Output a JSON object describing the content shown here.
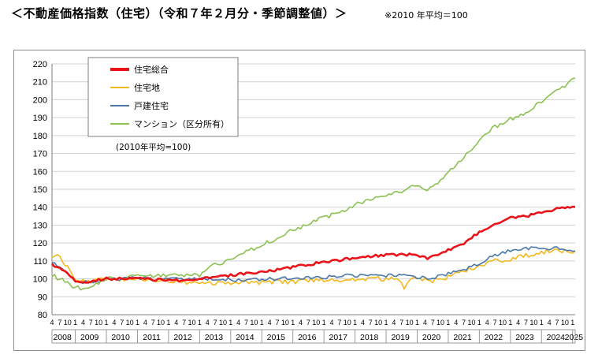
{
  "header": {
    "title": "＜不動産価格指数（住宅）（令和７年２月分・季節調整値）＞",
    "note": "※2010 年平均＝100"
  },
  "chart_data": {
    "type": "line",
    "base_note": "(2010年平均=100)",
    "ylim": [
      80,
      220
    ],
    "yticks": [
      80,
      90,
      100,
      110,
      120,
      130,
      140,
      150,
      160,
      170,
      180,
      190,
      200,
      210,
      220
    ],
    "grid": true,
    "legend_position": "top-left",
    "x_start": "2008-04",
    "x_end": "2025-02",
    "year_labels": [
      "2008",
      "2009",
      "2010",
      "2011",
      "2012",
      "2013",
      "2014",
      "2015",
      "2016",
      "2017",
      "2018",
      "2019",
      "2020",
      "2021",
      "2022",
      "2023",
      "2024",
      "2025"
    ],
    "month_tick_labels": [
      "4",
      "7",
      "10",
      "1"
    ],
    "series": [
      {
        "name": "住宅総合",
        "color": "#e8141a",
        "anchors": [
          [
            "2008-04",
            108
          ],
          [
            "2008-07",
            106
          ],
          [
            "2008-10",
            103
          ],
          [
            "2009-01",
            99
          ],
          [
            "2009-04",
            98
          ],
          [
            "2009-07",
            98
          ],
          [
            "2009-10",
            99.5
          ],
          [
            "2010-01",
            100
          ],
          [
            "2010-06",
            100
          ],
          [
            "2011-01",
            100.5
          ],
          [
            "2011-07",
            99.5
          ],
          [
            "2012-01",
            99.5
          ],
          [
            "2012-07",
            99
          ],
          [
            "2013-01",
            100
          ],
          [
            "2013-07",
            101
          ],
          [
            "2014-01",
            102
          ],
          [
            "2014-07",
            103
          ],
          [
            "2015-01",
            104
          ],
          [
            "2015-07",
            105
          ],
          [
            "2016-01",
            106.5
          ],
          [
            "2016-07",
            108
          ],
          [
            "2017-01",
            109.5
          ],
          [
            "2017-07",
            110.5
          ],
          [
            "2018-01",
            111.5
          ],
          [
            "2018-07",
            112.5
          ],
          [
            "2019-01",
            113.5
          ],
          [
            "2019-07",
            113.5
          ],
          [
            "2020-01",
            113.5
          ],
          [
            "2020-05",
            111.5
          ],
          [
            "2020-10",
            114
          ],
          [
            "2021-01",
            116
          ],
          [
            "2021-07",
            120
          ],
          [
            "2022-01",
            126
          ],
          [
            "2022-07",
            131
          ],
          [
            "2023-01",
            134
          ],
          [
            "2023-07",
            135
          ],
          [
            "2024-01",
            137
          ],
          [
            "2024-07",
            139
          ],
          [
            "2024-10",
            140
          ],
          [
            "2025-02",
            140
          ]
        ],
        "noise": 0.7
      },
      {
        "name": "住宅地",
        "color": "#f2b81e",
        "anchors": [
          [
            "2008-04",
            113
          ],
          [
            "2008-07",
            112
          ],
          [
            "2008-10",
            106
          ],
          [
            "2009-01",
            100
          ],
          [
            "2009-04",
            99
          ],
          [
            "2009-07",
            98.5
          ],
          [
            "2009-10",
            99
          ],
          [
            "2010-01",
            100
          ],
          [
            "2010-06",
            100
          ],
          [
            "2011-01",
            100
          ],
          [
            "2011-07",
            99
          ],
          [
            "2012-01",
            99
          ],
          [
            "2012-07",
            98
          ],
          [
            "2013-01",
            98
          ],
          [
            "2013-07",
            97.5
          ],
          [
            "2014-01",
            98
          ],
          [
            "2014-07",
            98
          ],
          [
            "2015-01",
            98
          ],
          [
            "2015-07",
            98.5
          ],
          [
            "2016-01",
            98
          ],
          [
            "2016-07",
            99
          ],
          [
            "2017-01",
            99.5
          ],
          [
            "2017-07",
            99.5
          ],
          [
            "2018-01",
            100
          ],
          [
            "2018-07",
            100
          ],
          [
            "2019-01",
            100
          ],
          [
            "2019-06",
            100
          ],
          [
            "2019-08",
            94
          ],
          [
            "2019-10",
            100
          ],
          [
            "2020-01",
            100
          ],
          [
            "2020-07",
            99
          ],
          [
            "2021-01",
            101
          ],
          [
            "2021-07",
            104
          ],
          [
            "2022-01",
            107
          ],
          [
            "2022-07",
            110
          ],
          [
            "2023-01",
            111
          ],
          [
            "2023-07",
            113
          ],
          [
            "2024-01",
            115
          ],
          [
            "2024-07",
            116
          ],
          [
            "2025-02",
            115
          ]
        ],
        "noise": 1.3
      },
      {
        "name": "戸建住宅",
        "color": "#4b78a8",
        "anchors": [
          [
            "2008-04",
            109
          ],
          [
            "2008-07",
            107
          ],
          [
            "2008-10",
            103
          ],
          [
            "2009-01",
            99
          ],
          [
            "2009-04",
            98
          ],
          [
            "2009-07",
            98
          ],
          [
            "2009-10",
            99
          ],
          [
            "2010-01",
            100
          ],
          [
            "2010-06",
            100
          ],
          [
            "2011-01",
            100.5
          ],
          [
            "2011-07",
            100
          ],
          [
            "2012-01",
            100
          ],
          [
            "2012-07",
            99.5
          ],
          [
            "2013-01",
            100
          ],
          [
            "2013-07",
            100
          ],
          [
            "2014-01",
            99.5
          ],
          [
            "2014-07",
            99.5
          ],
          [
            "2015-01",
            100
          ],
          [
            "2015-07",
            100
          ],
          [
            "2016-01",
            100.5
          ],
          [
            "2016-07",
            100.5
          ],
          [
            "2017-01",
            101
          ],
          [
            "2017-07",
            101.5
          ],
          [
            "2018-01",
            102
          ],
          [
            "2018-07",
            102
          ],
          [
            "2019-01",
            102
          ],
          [
            "2019-07",
            102
          ],
          [
            "2020-01",
            101
          ],
          [
            "2020-07",
            100.5
          ],
          [
            "2021-01",
            103
          ],
          [
            "2021-07",
            105
          ],
          [
            "2022-01",
            109
          ],
          [
            "2022-07",
            113
          ],
          [
            "2023-01",
            116
          ],
          [
            "2023-07",
            117
          ],
          [
            "2024-01",
            117
          ],
          [
            "2024-07",
            117
          ],
          [
            "2025-02",
            115
          ]
        ],
        "noise": 1.0
      },
      {
        "name": "マンション（区分所有）",
        "color": "#8cc152",
        "anchors": [
          [
            "2008-04",
            102
          ],
          [
            "2008-07",
            100
          ],
          [
            "2008-10",
            98
          ],
          [
            "2009-01",
            95
          ],
          [
            "2009-04",
            94.5
          ],
          [
            "2009-07",
            95.5
          ],
          [
            "2009-10",
            97.5
          ],
          [
            "2010-01",
            100
          ],
          [
            "2010-06",
            100.5
          ],
          [
            "2011-01",
            101.5
          ],
          [
            "2011-07",
            102
          ],
          [
            "2012-01",
            102.5
          ],
          [
            "2012-07",
            102
          ],
          [
            "2013-01",
            102
          ],
          [
            "2013-04",
            105
          ],
          [
            "2013-07",
            108
          ],
          [
            "2014-01",
            111
          ],
          [
            "2014-07",
            115
          ],
          [
            "2015-01",
            119
          ],
          [
            "2015-07",
            123
          ],
          [
            "2016-01",
            127
          ],
          [
            "2016-07",
            131
          ],
          [
            "2017-01",
            134
          ],
          [
            "2017-07",
            137
          ],
          [
            "2018-01",
            141
          ],
          [
            "2018-07",
            145
          ],
          [
            "2019-01",
            147
          ],
          [
            "2019-07",
            149
          ],
          [
            "2020-01",
            152
          ],
          [
            "2020-05",
            150
          ],
          [
            "2020-10",
            155
          ],
          [
            "2021-01",
            160
          ],
          [
            "2021-07",
            168
          ],
          [
            "2022-01",
            178
          ],
          [
            "2022-07",
            185
          ],
          [
            "2023-01",
            189
          ],
          [
            "2023-07",
            193
          ],
          [
            "2024-01",
            199
          ],
          [
            "2024-07",
            205
          ],
          [
            "2025-02",
            212
          ]
        ],
        "noise": 1.2
      }
    ]
  }
}
